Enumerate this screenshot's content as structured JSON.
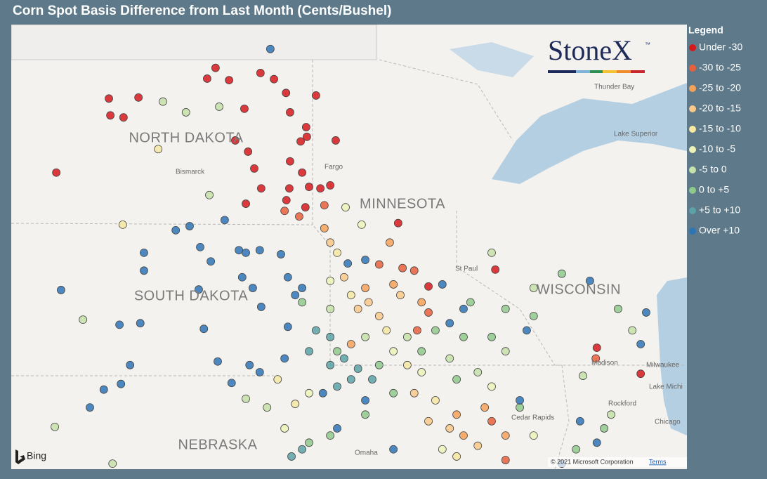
{
  "title": "Corn Spot Basis Difference from Last Month (Cents/Bushel)",
  "logo": {
    "text": "StoneX",
    "mark": "™"
  },
  "map_labels": {
    "states": [
      "NORTH DAKOTA",
      "SOUTH DAKOTA",
      "MINNESOTA",
      "WISCONSIN",
      "NEBRASKA"
    ],
    "places": [
      "Bismarck",
      "Fargo",
      "St Paul",
      "Madison",
      "Milwaukee",
      "Chicago",
      "Rockford",
      "Cedar Rapids",
      "Omaha",
      "Thunder Bay",
      "Lake Superior",
      "Lake Michi"
    ]
  },
  "attribution": {
    "provider": "Bing",
    "copyright": "© 2021 Microsoft Corporation",
    "terms": "Terms"
  },
  "legend": {
    "title": "Legend",
    "items": [
      {
        "label": "Under -30",
        "color": "#d7191c",
        "points": [
          [
            -102.76,
            48.25
          ],
          [
            -101.95,
            48.27
          ],
          [
            -102.72,
            47.92
          ],
          [
            -102.36,
            47.88
          ],
          [
            -100.07,
            48.64
          ],
          [
            -99.84,
            48.85
          ],
          [
            -99.47,
            48.61
          ],
          [
            -98.61,
            48.75
          ],
          [
            -98.24,
            48.63
          ],
          [
            -97.09,
            48.31
          ],
          [
            -97.91,
            48.36
          ],
          [
            -97.8,
            47.98
          ],
          [
            -99.05,
            48.05
          ],
          [
            -97.36,
            47.69
          ],
          [
            -97.34,
            47.5
          ],
          [
            -99.3,
            47.43
          ],
          [
            -98.95,
            47.21
          ],
          [
            -97.51,
            47.41
          ],
          [
            -97.8,
            47.02
          ],
          [
            -97.47,
            46.8
          ],
          [
            -98.78,
            46.88
          ],
          [
            -98.59,
            46.49
          ],
          [
            -97.82,
            46.49
          ],
          [
            -97.28,
            46.52
          ],
          [
            -96.97,
            46.49
          ],
          [
            -96.7,
            46.55
          ],
          [
            -97.9,
            46.26
          ],
          [
            -97.38,
            46.12
          ],
          [
            -99.01,
            46.19
          ],
          [
            -104.2,
            46.8
          ],
          [
            -96.55,
            47.43
          ],
          [
            -94.84,
            45.81
          ],
          [
            -88.2,
            42.86
          ],
          [
            -89.4,
            43.37
          ],
          [
            -92.18,
            44.9
          ],
          [
            -94.01,
            44.57
          ]
        ]
      },
      {
        "label": "-30 to -25",
        "color": "#e8603c",
        "points": [
          [
            -96.86,
            46.16
          ],
          [
            -97.95,
            46.05
          ],
          [
            -97.55,
            45.94
          ],
          [
            -95.36,
            45.0
          ],
          [
            -94.72,
            44.93
          ],
          [
            -94.01,
            44.06
          ],
          [
            -94.32,
            43.71
          ],
          [
            -89.43,
            43.16
          ],
          [
            -92.28,
            41.93
          ],
          [
            -91.9,
            41.17
          ],
          [
            -94.4,
            44.88
          ]
        ]
      },
      {
        "label": "-25 to -20",
        "color": "#f4a259",
        "points": [
          [
            -96.86,
            45.71
          ],
          [
            -95.07,
            45.43
          ],
          [
            -95.74,
            44.54
          ],
          [
            -94.97,
            44.61
          ],
          [
            -94.2,
            44.26
          ],
          [
            -93.24,
            42.06
          ],
          [
            -92.47,
            42.2
          ],
          [
            -91.9,
            41.65
          ],
          [
            -93.05,
            41.65
          ],
          [
            -96.13,
            43.44
          ]
        ]
      },
      {
        "label": "-20 to -15",
        "color": "#f8c98a",
        "points": [
          [
            -96.7,
            45.43
          ],
          [
            -95.65,
            44.26
          ],
          [
            -94.78,
            44.4
          ],
          [
            -95.36,
            43.99
          ],
          [
            -94.01,
            41.93
          ],
          [
            -93.43,
            41.79
          ],
          [
            -94.4,
            42.48
          ],
          [
            -92.66,
            41.45
          ],
          [
            -96.32,
            44.75
          ],
          [
            -95.94,
            44.13
          ]
        ]
      },
      {
        "label": "-15 to -10",
        "color": "#f6e7a2",
        "points": [
          [
            -101.41,
            47.26
          ],
          [
            -102.38,
            45.78
          ],
          [
            -96.51,
            45.23
          ],
          [
            -96.13,
            44.4
          ],
          [
            -95.16,
            43.71
          ],
          [
            -93.82,
            42.34
          ],
          [
            -94.59,
            43.03
          ],
          [
            -98.14,
            42.75
          ],
          [
            -97.66,
            42.27
          ],
          [
            -93.24,
            41.24
          ]
        ]
      },
      {
        "label": "-10 to -5",
        "color": "#edf3b8",
        "points": [
          [
            -96.28,
            46.12
          ],
          [
            -95.84,
            45.78
          ],
          [
            -96.7,
            44.68
          ],
          [
            -94.97,
            43.3
          ],
          [
            -94.2,
            42.89
          ],
          [
            -92.28,
            42.61
          ],
          [
            -97.28,
            42.48
          ],
          [
            -97.95,
            41.79
          ],
          [
            -93.63,
            41.38
          ],
          [
            -91.13,
            41.65
          ]
        ]
      },
      {
        "label": "-5 to 0",
        "color": "#c4e2a9",
        "points": [
          [
            -101.28,
            48.19
          ],
          [
            -100.65,
            47.98
          ],
          [
            -99.74,
            48.09
          ],
          [
            -100.01,
            46.36
          ],
          [
            -103.47,
            43.92
          ],
          [
            -104.24,
            41.82
          ],
          [
            -96.7,
            44.13
          ],
          [
            -95.74,
            43.58
          ],
          [
            -94.59,
            43.58
          ],
          [
            -93.43,
            43.16
          ],
          [
            -92.66,
            42.89
          ],
          [
            -91.9,
            43.3
          ],
          [
            -89.78,
            42.82
          ],
          [
            -89.01,
            42.06
          ],
          [
            -88.43,
            43.71
          ],
          [
            -92.28,
            45.23
          ],
          [
            -98.43,
            42.2
          ],
          [
            -99.01,
            42.37
          ],
          [
            -102.66,
            41.1
          ],
          [
            -91.13,
            44.54
          ]
        ]
      },
      {
        "label": "0 to +5",
        "color": "#8fca8d",
        "points": [
          [
            -96.51,
            43.3
          ],
          [
            -95.36,
            43.03
          ],
          [
            -94.2,
            43.3
          ],
          [
            -93.05,
            43.58
          ],
          [
            -92.28,
            43.58
          ],
          [
            -91.13,
            43.99
          ],
          [
            -90.36,
            44.82
          ],
          [
            -88.82,
            44.13
          ],
          [
            -93.82,
            43.71
          ],
          [
            -93.24,
            42.75
          ],
          [
            -94.97,
            42.48
          ],
          [
            -95.74,
            42.06
          ],
          [
            -96.7,
            41.65
          ],
          [
            -97.28,
            41.51
          ],
          [
            -89.97,
            41.38
          ],
          [
            -89.2,
            41.79
          ],
          [
            -91.51,
            42.2
          ],
          [
            -92.86,
            44.26
          ],
          [
            -91.9,
            44.13
          ],
          [
            -97.47,
            44.26
          ]
        ]
      },
      {
        "label": "+5 to +10",
        "color": "#5ba3a8",
        "points": [
          [
            -96.7,
            43.03
          ],
          [
            -96.32,
            43.16
          ],
          [
            -95.94,
            42.96
          ],
          [
            -96.51,
            42.61
          ],
          [
            -96.13,
            42.75
          ],
          [
            -95.55,
            42.75
          ],
          [
            -97.09,
            43.71
          ],
          [
            -96.7,
            43.58
          ],
          [
            -97.28,
            43.3
          ],
          [
            -97.47,
            41.38
          ],
          [
            -97.76,
            41.24
          ]
        ]
      },
      {
        "label": "Over +10",
        "color": "#2e75b6",
        "points": [
          [
            -98.34,
            49.22
          ],
          [
            -104.07,
            44.5
          ],
          [
            -101.8,
            45.23
          ],
          [
            -100.93,
            45.67
          ],
          [
            -100.55,
            45.75
          ],
          [
            -99.59,
            45.87
          ],
          [
            -100.26,
            45.34
          ],
          [
            -99.97,
            45.06
          ],
          [
            -99.2,
            45.28
          ],
          [
            -98.63,
            45.28
          ],
          [
            -98.05,
            45.2
          ],
          [
            -101.8,
            44.88
          ],
          [
            -100.3,
            44.51
          ],
          [
            -98.82,
            44.54
          ],
          [
            -97.86,
            44.75
          ],
          [
            -97.47,
            44.54
          ],
          [
            -98.59,
            44.17
          ],
          [
            -97.86,
            43.78
          ],
          [
            -102.47,
            43.82
          ],
          [
            -101.9,
            43.85
          ],
          [
            -100.16,
            43.74
          ],
          [
            -102.18,
            43.03
          ],
          [
            -102.9,
            42.55
          ],
          [
            -103.28,
            42.2
          ],
          [
            -102.43,
            42.66
          ],
          [
            -99.78,
            43.1
          ],
          [
            -98.91,
            43.03
          ],
          [
            -98.63,
            42.89
          ],
          [
            -97.95,
            43.16
          ],
          [
            -96.22,
            45.02
          ],
          [
            -95.74,
            45.09
          ],
          [
            -93.63,
            44.61
          ],
          [
            -93.05,
            44.13
          ],
          [
            -93.43,
            43.85
          ],
          [
            -91.32,
            43.71
          ],
          [
            -91.51,
            42.34
          ],
          [
            -89.86,
            41.93
          ],
          [
            -88.2,
            43.44
          ],
          [
            -88.05,
            44.06
          ],
          [
            -89.59,
            44.68
          ],
          [
            -94.97,
            41.38
          ],
          [
            -95.74,
            42.34
          ],
          [
            -90.36,
            41.1
          ],
          [
            -89.4,
            41.51
          ],
          [
            -96.9,
            42.48
          ],
          [
            -99.11,
            44.75
          ],
          [
            -99.01,
            45.23
          ],
          [
            -99.4,
            42.68
          ],
          [
            -97.66,
            44.4
          ],
          [
            -96.51,
            41.79
          ]
        ]
      }
    ]
  }
}
